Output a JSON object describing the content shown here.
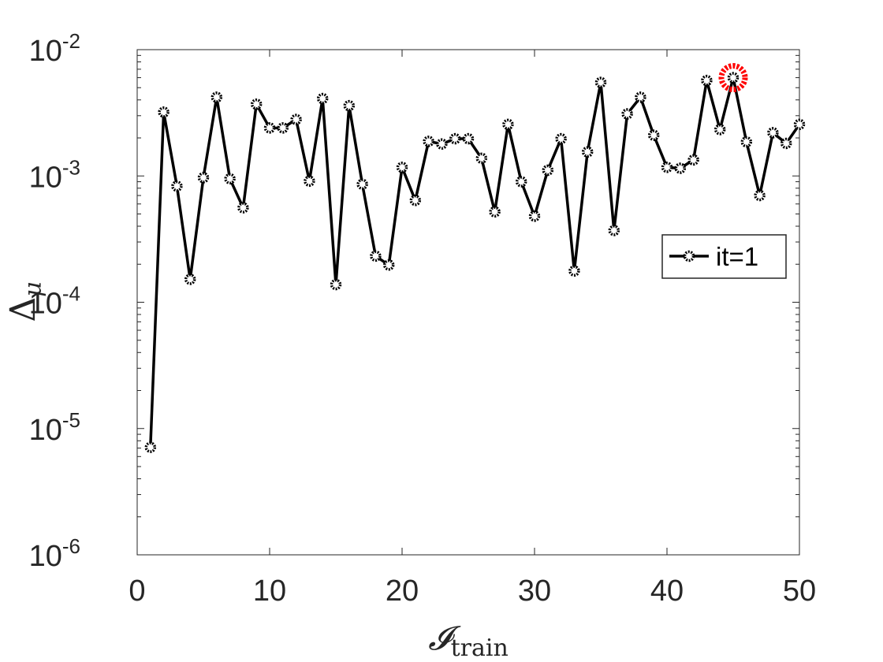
{
  "chart_data": {
    "type": "line",
    "xlabel": "𝓘",
    "xlabel_sub": "train",
    "ylabel": "Δ",
    "ylabel_sub": "μ",
    "xlim": [
      0,
      50
    ],
    "ylim": [
      1e-06,
      0.01
    ],
    "y_scale": "log",
    "grid": false,
    "x_ticks": [
      "0",
      "10",
      "20",
      "30",
      "40",
      "50"
    ],
    "y_ticks": [
      {
        "base": "10",
        "exp": "-6"
      },
      {
        "base": "10",
        "exp": "-5"
      },
      {
        "base": "10",
        "exp": "-4"
      },
      {
        "base": "10",
        "exp": "-3"
      },
      {
        "base": "10",
        "exp": "-2"
      }
    ],
    "legend_position": "right",
    "series": [
      {
        "name": "it=1",
        "color": "#000000",
        "marker": "circle",
        "x": [
          1,
          2,
          3,
          4,
          5,
          6,
          7,
          8,
          9,
          10,
          11,
          12,
          13,
          14,
          15,
          16,
          17,
          18,
          19,
          20,
          21,
          22,
          23,
          24,
          25,
          26,
          27,
          28,
          29,
          30,
          31,
          32,
          33,
          34,
          35,
          36,
          37,
          38,
          39,
          40,
          41,
          42,
          43,
          44,
          45,
          46,
          47,
          48,
          49,
          50
        ],
        "values": [
          7.1e-06,
          0.0032,
          0.00083,
          0.000152,
          0.00097,
          0.0042,
          0.00095,
          0.00056,
          0.0037,
          0.0024,
          0.0024,
          0.0028,
          0.00091,
          0.0041,
          0.000138,
          0.0036,
          0.00086,
          0.000232,
          0.000197,
          0.00117,
          0.00064,
          0.00188,
          0.00179,
          0.00197,
          0.00197,
          0.00138,
          0.00052,
          0.00256,
          0.0009,
          0.00048,
          0.00111,
          0.00197,
          0.000177,
          0.00155,
          0.0055,
          0.00037,
          0.0031,
          0.0042,
          0.0021,
          0.00117,
          0.00115,
          0.00134,
          0.0057,
          0.00233,
          0.006,
          0.00186,
          0.0007,
          0.0022,
          0.00181,
          0.00256
        ]
      }
    ],
    "highlight": {
      "x": 45,
      "value": 0.006,
      "color": "#ff0000"
    }
  }
}
